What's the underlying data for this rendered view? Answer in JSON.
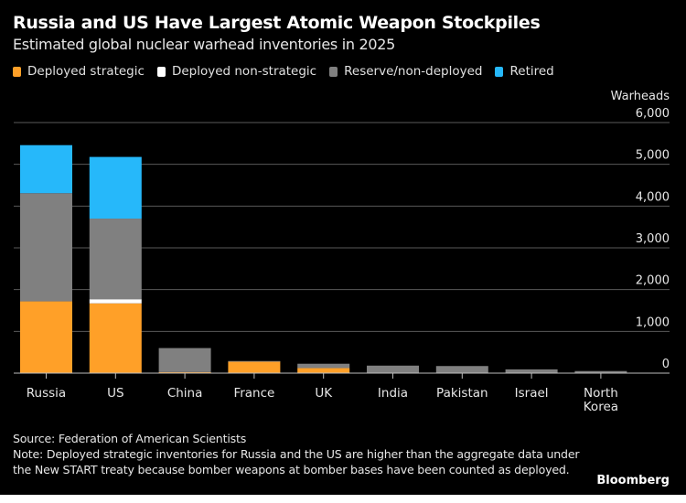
{
  "chart_data": {
    "type": "bar",
    "stacked": true,
    "title": "Russia and US Have Largest Atomic Weapon Stockpiles",
    "subtitle": "Estimated global nuclear warhead inventories in 2025",
    "ylabel": "Warheads",
    "xlabel": "",
    "ylim": [
      0,
      6000
    ],
    "yticks": [
      0,
      1000,
      2000,
      3000,
      4000,
      5000,
      6000
    ],
    "ytick_labels": [
      "0",
      "1,000",
      "2,000",
      "3,000",
      "4,000",
      "5,000",
      "6,000"
    ],
    "grid": true,
    "legend_position": "top-left",
    "categories": [
      "Russia",
      "US",
      "China",
      "France",
      "UK",
      "India",
      "Pakistan",
      "Israel",
      "North Korea"
    ],
    "category_labels": [
      [
        "Russia"
      ],
      [
        "US"
      ],
      [
        "China"
      ],
      [
        "France"
      ],
      [
        "UK"
      ],
      [
        "India"
      ],
      [
        "Pakistan"
      ],
      [
        "Israel"
      ],
      [
        "North",
        "Korea"
      ]
    ],
    "series": [
      {
        "name": "Deployed strategic",
        "color": "#ffa028",
        "values": [
          1718,
          1670,
          24,
          280,
          120,
          0,
          0,
          0,
          0
        ]
      },
      {
        "name": "Deployed non-strategic",
        "color": "#ffffff",
        "values": [
          0,
          100,
          0,
          0,
          0,
          0,
          0,
          0,
          0
        ]
      },
      {
        "name": "Reserve/non-deployed",
        "color": "#808080",
        "values": [
          2591,
          1930,
          576,
          10,
          105,
          180,
          170,
          90,
          50
        ]
      },
      {
        "name": "Retired",
        "color": "#26b8fa",
        "values": [
          1150,
          1477,
          0,
          0,
          0,
          0,
          0,
          0,
          0
        ]
      }
    ]
  },
  "footer": {
    "source": "Source: Federation of American Scientists",
    "note": "Note: Deployed strategic inventories for Russia and the US are higher than the aggregate data under the New START treaty because bomber weapons at bomber bases have been counted as deployed.",
    "brand": "Bloomberg"
  }
}
